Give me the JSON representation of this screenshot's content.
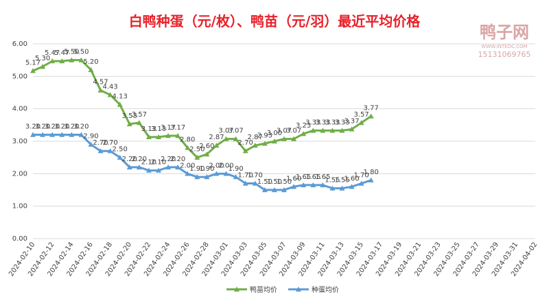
{
  "chart_data": {
    "type": "line",
    "title": "白鸭种蛋（元/枚）、鸭苗（元/羽）最近平均价格",
    "watermark": [
      "鸭子网",
      "WWW.INTEDC.COM",
      "15131069765"
    ],
    "categories": [
      "2024-02-10",
      null,
      "2024-02-12",
      null,
      "2024-02-14",
      null,
      "2024-02-16",
      null,
      "2024-02-18",
      null,
      "2024-02-20",
      null,
      "2024-02-22",
      null,
      "2024-02-24",
      null,
      "2024-02-26",
      null,
      "2024-02-28",
      null,
      "2024-03-01",
      null,
      "2024-03-03",
      null,
      "2024-03-05",
      null,
      "2024-03-07",
      null,
      "2024-03-09",
      null,
      "2024-03-11",
      null,
      "2024-03-13",
      null,
      "2024-03-15",
      null,
      "2024-03-17",
      null,
      "2024-03-19",
      null,
      "2024-03-21",
      null,
      "2024-03-23",
      null,
      "2024-03-25",
      null,
      "2024-03-27",
      null,
      "2024-03-29",
      null,
      "2024-03-31",
      null,
      "2024-04-02"
    ],
    "series": [
      {
        "name": "鸭苗均价",
        "color": "#70ad47",
        "marker": "triangle",
        "values": [
          5.17,
          5.3,
          5.47,
          5.47,
          5.5,
          5.5,
          5.2,
          4.57,
          4.43,
          4.13,
          3.53,
          3.57,
          3.13,
          3.13,
          3.17,
          3.17,
          2.8,
          2.5,
          2.6,
          2.87,
          3.07,
          3.07,
          2.7,
          2.87,
          2.93,
          3.0,
          3.07,
          3.07,
          3.23,
          3.33,
          3.33,
          3.33,
          3.33,
          3.37,
          3.57,
          3.77,
          null,
          null,
          null,
          null,
          null,
          null,
          null,
          null,
          null,
          null,
          null,
          null,
          null,
          null,
          null,
          null,
          null
        ],
        "value_labels": [
          "5.17",
          "5.30",
          "5.47",
          "5.47",
          "5.50",
          "5.50",
          "5.20",
          "4.57",
          "4.43",
          "4.13",
          "3.53",
          "3.57",
          "3.13",
          "3.13",
          "3.17",
          "3.17",
          "2.80",
          "2.50",
          "2.60",
          "2.87",
          "3.07",
          "3.07",
          "2.70",
          "2.87",
          "2.93",
          "3.00",
          "3.07",
          "3.07",
          "3.23",
          "3.33",
          "3.33",
          "3.33",
          "3.33",
          "3.37",
          "3.57",
          "3.77",
          null,
          null,
          null,
          null,
          null,
          null,
          null,
          null,
          null,
          null,
          null,
          null,
          null,
          null,
          null,
          null,
          null
        ]
      },
      {
        "name": "种蛋均价",
        "color": "#5b9bd5",
        "marker": "triangle",
        "values": [
          3.2,
          3.2,
          3.2,
          3.2,
          3.2,
          3.2,
          2.9,
          2.7,
          2.7,
          2.5,
          2.2,
          2.2,
          2.1,
          2.1,
          2.2,
          2.2,
          2.0,
          1.9,
          1.9,
          2.0,
          2.0,
          1.9,
          1.7,
          1.7,
          1.5,
          1.5,
          1.5,
          1.6,
          1.65,
          1.65,
          1.65,
          1.55,
          1.55,
          1.6,
          1.7,
          1.8,
          null,
          null,
          null,
          null,
          null,
          null,
          null,
          null,
          null,
          null,
          null,
          null,
          null,
          null,
          null,
          null,
          null
        ],
        "value_labels": [
          "3.20",
          "3.20",
          "3.20",
          "3.20",
          "3.20",
          "3.20",
          "2.90",
          "2.70",
          "2.70",
          "2.50",
          "2.20",
          "2.20",
          "2.10",
          "2.10",
          "2.20",
          "2.20",
          "2.00",
          "1.90",
          "1.90",
          "2.00",
          "2.00",
          "1.90",
          "1.70",
          "1.70",
          "1.50",
          "1.50",
          "1.50",
          "1.60",
          "1.65",
          "1.65",
          "1.65",
          "1.55",
          "1.55",
          "1.60",
          "1.70",
          "1.80",
          null,
          null,
          null,
          null,
          null,
          null,
          null,
          null,
          null,
          null,
          null,
          null,
          null,
          null,
          null,
          null,
          null
        ]
      }
    ],
    "ylim": [
      0,
      6
    ],
    "yticks": [
      {
        "value": 0,
        "label": "0.00"
      },
      {
        "value": 1,
        "label": "1.00"
      },
      {
        "value": 2,
        "label": "2.00"
      },
      {
        "value": 3,
        "label": "3.00"
      },
      {
        "value": 4,
        "label": "4.00"
      },
      {
        "value": 5,
        "label": "5.00"
      },
      {
        "value": 6,
        "label": "6.00"
      }
    ],
    "grid": true,
    "legend": "bottom"
  }
}
